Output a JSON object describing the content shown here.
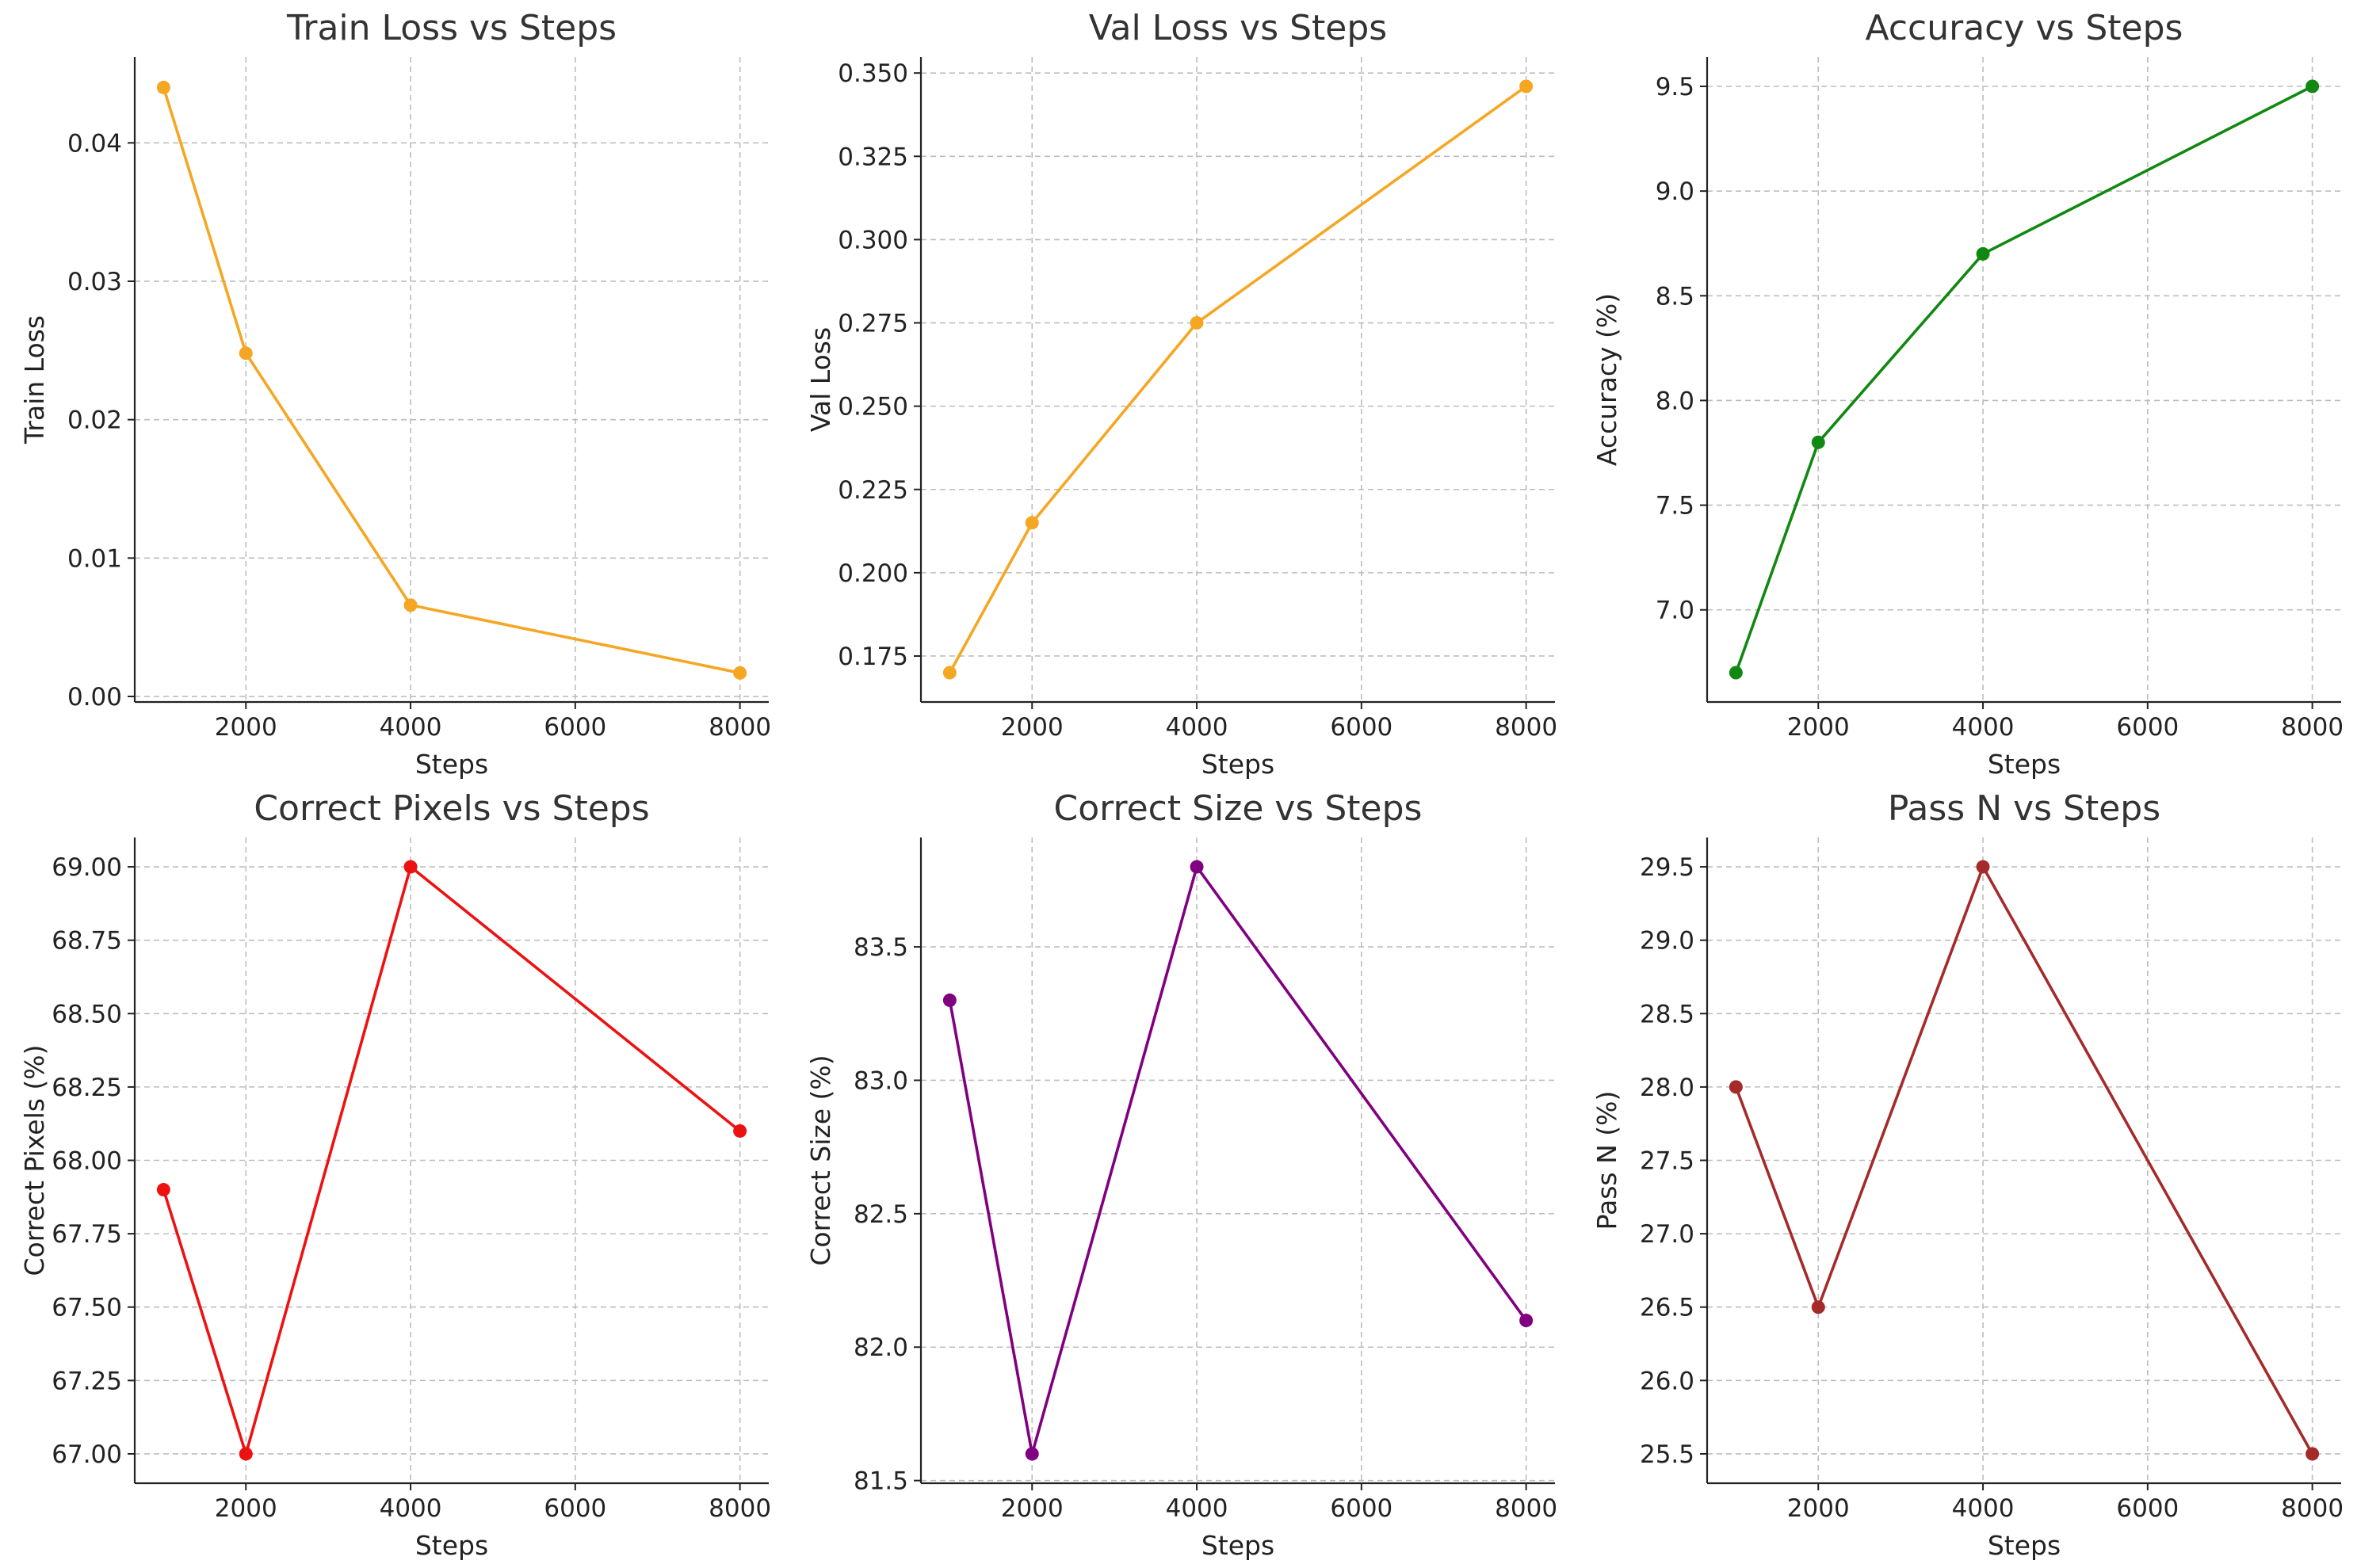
{
  "chart_data": [
    {
      "type": "line",
      "title": "Train Loss vs Steps",
      "xlabel": "Steps",
      "ylabel": "Train Loss",
      "color": "#f5a623",
      "x": [
        1000,
        2000,
        4000,
        8000
      ],
      "y": [
        0.044,
        0.0248,
        0.0066,
        0.0017
      ],
      "xlim": [
        650,
        8350
      ],
      "ylim": [
        -0.0004,
        0.0462
      ],
      "xticks": [
        2000,
        4000,
        6000,
        8000
      ],
      "yticks": [
        0.0,
        0.01,
        0.02,
        0.03,
        0.04
      ],
      "xtick_labels": [
        "2000",
        "4000",
        "6000",
        "8000"
      ],
      "ytick_labels": [
        "0.00",
        "0.01",
        "0.02",
        "0.03",
        "0.04"
      ],
      "grid": true
    },
    {
      "type": "line",
      "title": "Val Loss vs Steps",
      "xlabel": "Steps",
      "ylabel": "Val Loss",
      "color": "#f5a623",
      "x": [
        1000,
        2000,
        4000,
        8000
      ],
      "y": [
        0.17,
        0.215,
        0.275,
        0.346
      ],
      "xlim": [
        650,
        8350
      ],
      "ylim": [
        0.1612,
        0.3548
      ],
      "xticks": [
        2000,
        4000,
        6000,
        8000
      ],
      "yticks": [
        0.175,
        0.2,
        0.225,
        0.25,
        0.275,
        0.3,
        0.325,
        0.35
      ],
      "xtick_labels": [
        "2000",
        "4000",
        "6000",
        "8000"
      ],
      "ytick_labels": [
        "0.175",
        "0.200",
        "0.225",
        "0.250",
        "0.275",
        "0.300",
        "0.325",
        "0.350"
      ],
      "grid": true
    },
    {
      "type": "line",
      "title": "Accuracy vs Steps",
      "xlabel": "Steps",
      "ylabel": "Accuracy (%)",
      "color": "#118811",
      "x": [
        1000,
        2000,
        4000,
        8000
      ],
      "y": [
        6.7,
        7.8,
        8.7,
        9.5
      ],
      "xlim": [
        650,
        8350
      ],
      "ylim": [
        6.56,
        9.64
      ],
      "xticks": [
        2000,
        4000,
        6000,
        8000
      ],
      "yticks": [
        7.0,
        7.5,
        8.0,
        8.5,
        9.0,
        9.5
      ],
      "xtick_labels": [
        "2000",
        "4000",
        "6000",
        "8000"
      ],
      "ytick_labels": [
        "7.0",
        "7.5",
        "8.0",
        "8.5",
        "9.0",
        "9.5"
      ],
      "grid": true
    },
    {
      "type": "line",
      "title": "Correct Pixels vs Steps",
      "xlabel": "Steps",
      "ylabel": "Correct Pixels (%)",
      "color": "#ee1111",
      "x": [
        1000,
        2000,
        4000,
        8000
      ],
      "y": [
        67.9,
        67.0,
        69.0,
        68.1
      ],
      "xlim": [
        650,
        8350
      ],
      "ylim": [
        66.9,
        69.1
      ],
      "xticks": [
        2000,
        4000,
        6000,
        8000
      ],
      "yticks": [
        67.0,
        67.25,
        67.5,
        67.75,
        68.0,
        68.25,
        68.5,
        68.75,
        69.0
      ],
      "xtick_labels": [
        "2000",
        "4000",
        "6000",
        "8000"
      ],
      "ytick_labels": [
        "67.00",
        "67.25",
        "67.50",
        "67.75",
        "68.00",
        "68.25",
        "68.50",
        "68.75",
        "69.00"
      ],
      "grid": true
    },
    {
      "type": "line",
      "title": "Correct Size vs Steps",
      "xlabel": "Steps",
      "ylabel": "Correct Size (%)",
      "color": "#800080",
      "x": [
        1000,
        2000,
        4000,
        8000
      ],
      "y": [
        83.3,
        81.6,
        83.8,
        82.1
      ],
      "xlim": [
        650,
        8350
      ],
      "ylim": [
        81.49,
        83.91
      ],
      "xticks": [
        2000,
        4000,
        6000,
        8000
      ],
      "yticks": [
        81.5,
        82.0,
        82.5,
        83.0,
        83.5
      ],
      "xtick_labels": [
        "2000",
        "4000",
        "6000",
        "8000"
      ],
      "ytick_labels": [
        "81.5",
        "82.0",
        "82.5",
        "83.0",
        "83.5"
      ],
      "grid": true
    },
    {
      "type": "line",
      "title": "Pass N vs Steps",
      "xlabel": "Steps",
      "ylabel": "Pass N (%)",
      "color": "#a52a2a",
      "x": [
        1000,
        2000,
        4000,
        8000
      ],
      "y": [
        28.0,
        26.5,
        29.5,
        25.5
      ],
      "xlim": [
        650,
        8350
      ],
      "ylim": [
        25.3,
        29.7
      ],
      "xticks": [
        2000,
        4000,
        6000,
        8000
      ],
      "yticks": [
        25.5,
        26.0,
        26.5,
        27.0,
        27.5,
        28.0,
        28.5,
        29.0,
        29.5
      ],
      "xtick_labels": [
        "2000",
        "4000",
        "6000",
        "8000"
      ],
      "ytick_labels": [
        "25.5",
        "26.0",
        "26.5",
        "27.0",
        "27.5",
        "28.0",
        "28.5",
        "29.0",
        "29.5"
      ],
      "grid": true
    }
  ]
}
